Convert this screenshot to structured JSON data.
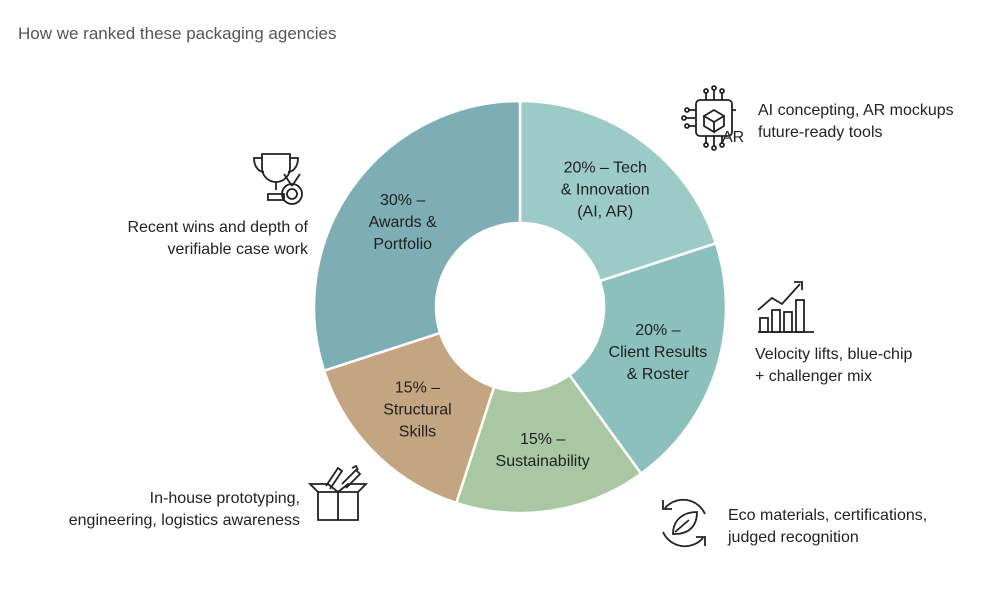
{
  "title": "How we ranked these packaging agencies",
  "chart_data": {
    "type": "pie",
    "variant": "donut",
    "slices": [
      {
        "name": "Tech & Innovation (AI, AR)",
        "value": 20,
        "color": "#9ccbc7",
        "label": [
          "20% – Tech",
          "& Innovation",
          "(AI, AR)"
        ]
      },
      {
        "name": "Client Results & Roster",
        "value": 20,
        "color": "#8bc0bd",
        "label": [
          "20% –",
          "Client Results",
          "& Roster"
        ]
      },
      {
        "name": "Sustainability",
        "value": 15,
        "color": "#a9c7a3",
        "label": [
          "15% –",
          "Sustainability"
        ]
      },
      {
        "name": "Structural Skills",
        "value": 15,
        "color": "#c4a582",
        "label": [
          "15% –",
          "Structural",
          "Skills"
        ]
      },
      {
        "name": "Awards & Portfolio",
        "value": 30,
        "color": "#7eaeb5",
        "label": [
          "30% –",
          "Awards &",
          "Portfolio"
        ]
      }
    ]
  },
  "notes": {
    "tech": [
      "AI concepting, AR mockups",
      "future-ready tools"
    ],
    "client": [
      "Velocity lifts, blue-chip",
      "+ challenger mix"
    ],
    "sustainability": [
      "Eco materials, certifications,",
      "judged recognition"
    ],
    "structural": [
      "In-house prototyping,",
      "engineering, logistics awareness"
    ],
    "awards": [
      "Recent wins and depth of",
      "verifiable case work"
    ]
  },
  "icons": {
    "tech": "ai-chip-icon",
    "tech_badge": "AR",
    "client": "growth-chart-icon",
    "sustainability": "recycle-leaf-icon",
    "structural": "box-tools-icon",
    "awards": "trophy-medal-icon"
  },
  "colors": {
    "stroke": "#ffffff",
    "text": "#1f1f1f",
    "icon": "#222222"
  }
}
